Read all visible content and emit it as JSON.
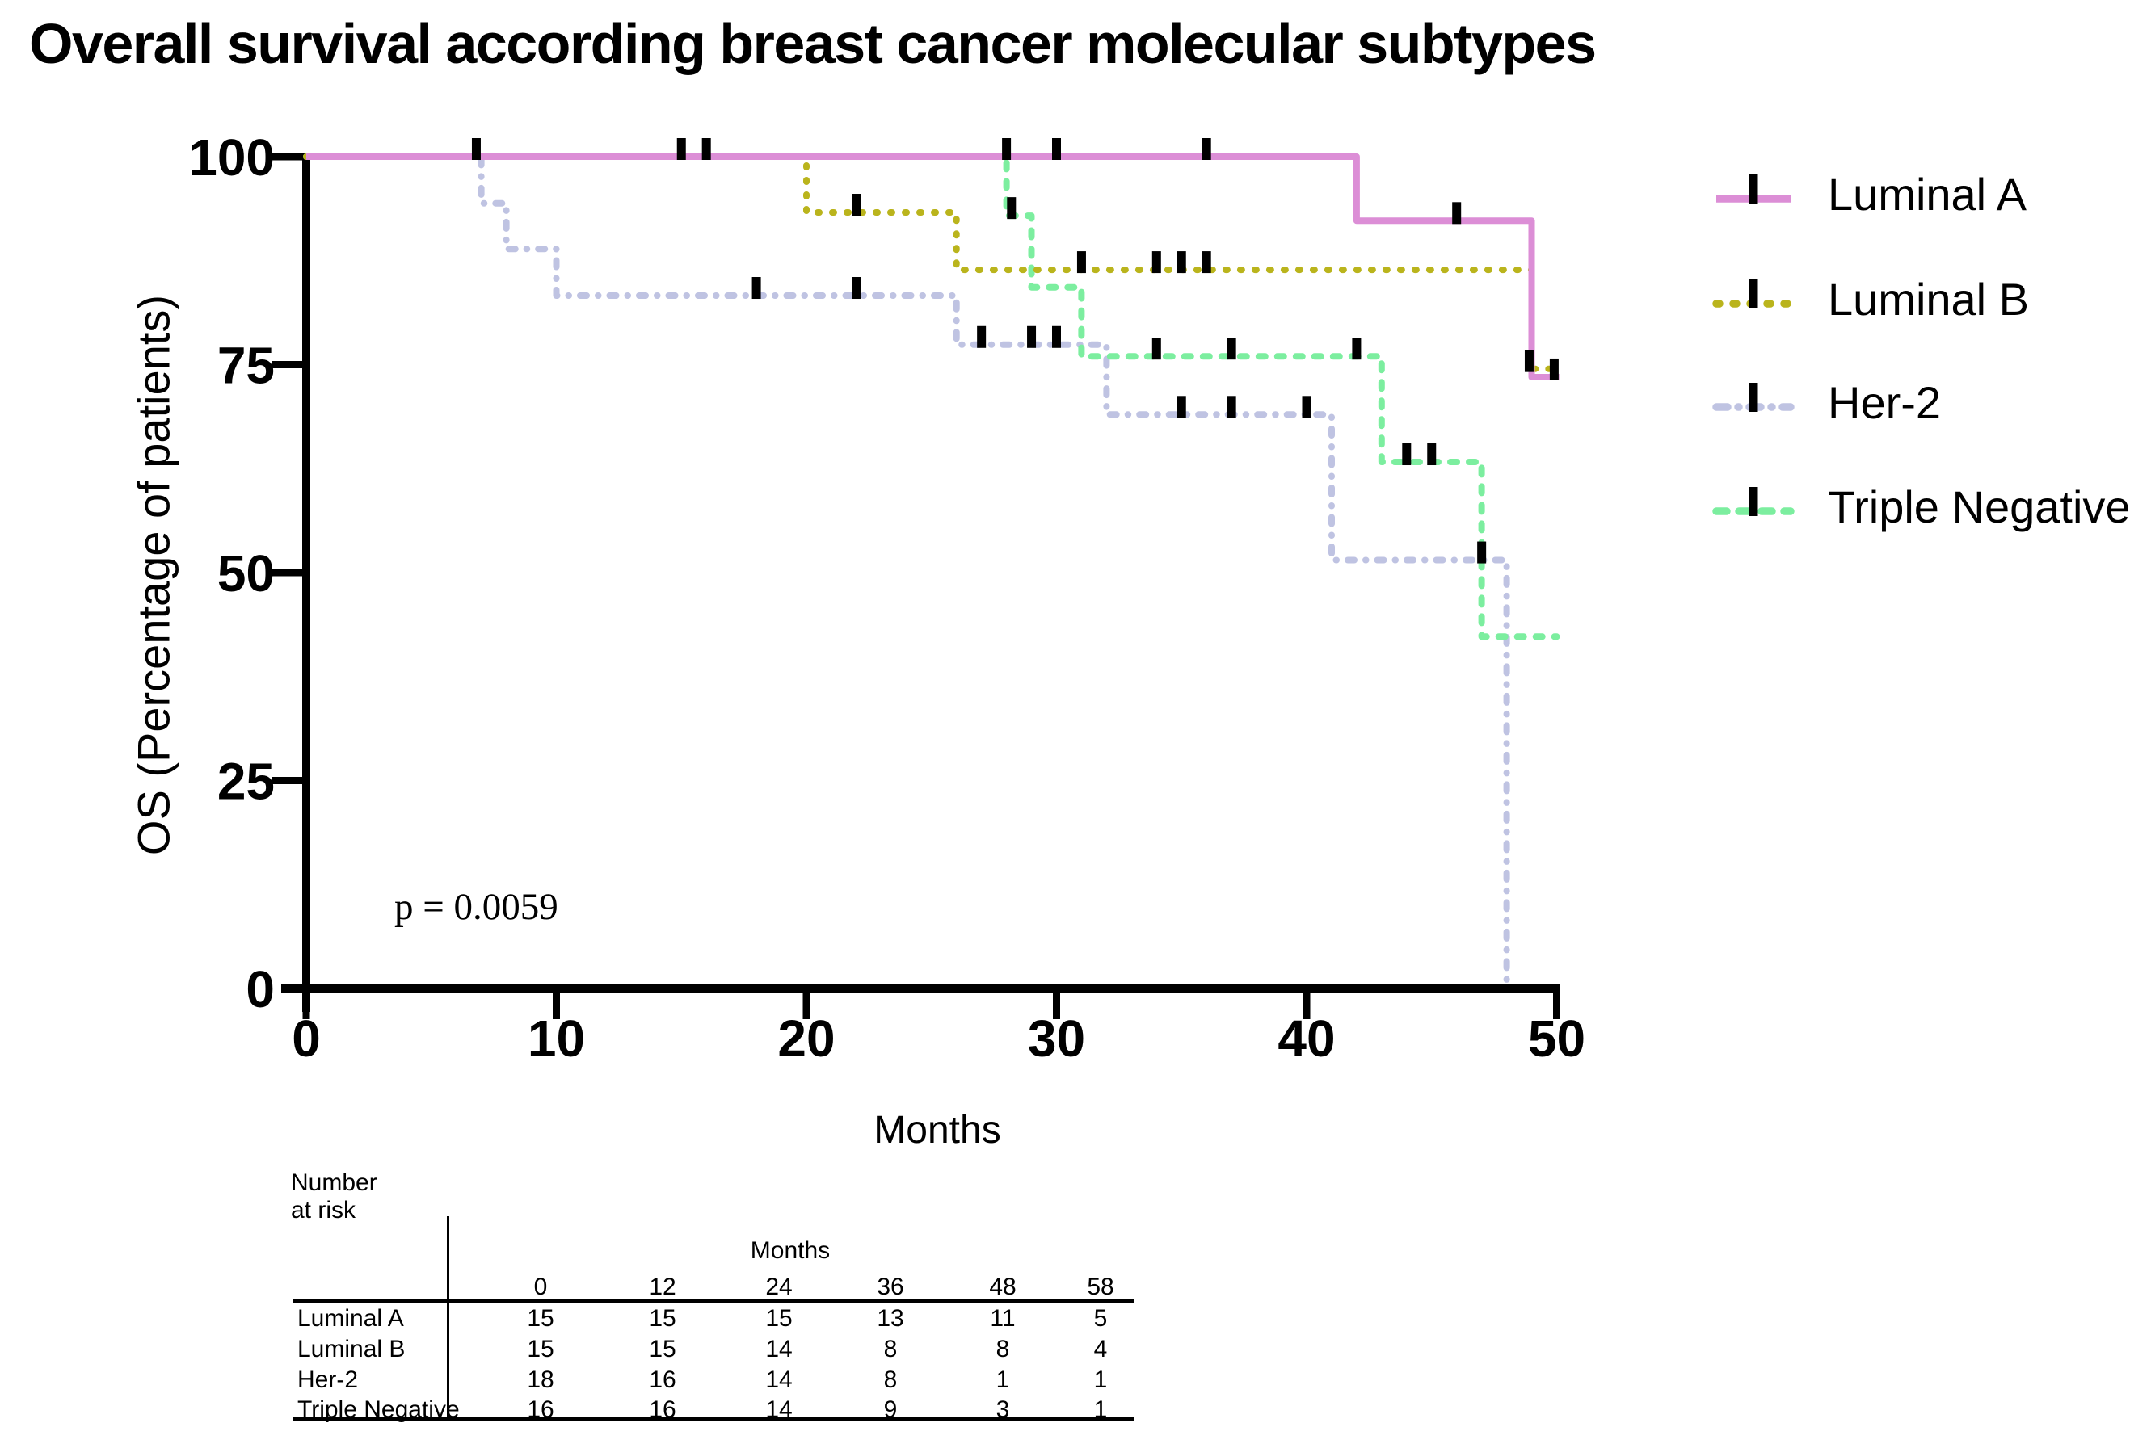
{
  "page": {
    "title": "Overall survival according breast cancer molecular subtypes"
  },
  "chart_data": {
    "type": "line",
    "subtype": "kaplan-meier-step",
    "title": "Overall survival according breast cancer molecular subtypes",
    "xlabel": "Months",
    "ylabel": "OS (Percentage of patients)",
    "annotation": "p = 0.0059",
    "xlim": [
      0,
      50
    ],
    "ylim": [
      0,
      100
    ],
    "xticks": [
      0,
      10,
      20,
      30,
      40,
      50
    ],
    "yticks": [
      100,
      75,
      50,
      25,
      0
    ],
    "grid": false,
    "legend_position": "right",
    "series": [
      {
        "name": "Her-2",
        "color": "#BFC3E2",
        "style": "dash-dot-dot",
        "steps": [
          [
            0,
            100
          ],
          [
            7,
            100
          ],
          [
            7,
            94.4
          ],
          [
            8,
            94.4
          ],
          [
            8,
            88.9
          ],
          [
            10,
            88.9
          ],
          [
            10,
            83.3
          ],
          [
            26,
            83.3
          ],
          [
            26,
            77.4
          ],
          [
            32,
            77.4
          ],
          [
            32,
            69
          ],
          [
            41,
            69
          ],
          [
            41,
            51.5
          ],
          [
            48,
            51.5
          ],
          [
            48,
            0
          ]
        ],
        "censors": [
          [
            6.8,
            100
          ],
          [
            18,
            83.3
          ],
          [
            22,
            83.3
          ],
          [
            27,
            77.4
          ],
          [
            29,
            77.4
          ],
          [
            30,
            77.4
          ],
          [
            35,
            69
          ],
          [
            37,
            69
          ],
          [
            40,
            69
          ],
          [
            47,
            51.5
          ]
        ]
      },
      {
        "name": "Triple Negative",
        "color": "#7CEE9F",
        "style": "dashed",
        "steps": [
          [
            0,
            100
          ],
          [
            28,
            100
          ],
          [
            28,
            92.9
          ],
          [
            29,
            92.9
          ],
          [
            29,
            84.3
          ],
          [
            31,
            84.3
          ],
          [
            31,
            76
          ],
          [
            43,
            76
          ],
          [
            43,
            63.3
          ],
          [
            47,
            63.3
          ],
          [
            47,
            42.3
          ],
          [
            50,
            42.3
          ]
        ],
        "censors": [
          [
            15,
            100
          ],
          [
            16,
            100
          ],
          [
            28.2,
            92.9
          ],
          [
            34,
            76
          ],
          [
            37,
            76
          ],
          [
            42,
            76
          ],
          [
            44,
            63.3
          ],
          [
            45,
            63.3
          ]
        ]
      },
      {
        "name": "Luminal B",
        "color": "#BAB41C",
        "style": "dotted",
        "steps": [
          [
            0,
            100
          ],
          [
            20,
            100
          ],
          [
            20,
            93.3
          ],
          [
            26,
            93.3
          ],
          [
            26,
            86.4
          ],
          [
            49,
            86.4
          ],
          [
            49,
            74.5
          ],
          [
            49.8,
            74.5
          ]
        ],
        "censors": [
          [
            22,
            93.3
          ],
          [
            31,
            86.4
          ],
          [
            34,
            86.4
          ],
          [
            35,
            86.4
          ],
          [
            36,
            86.4
          ],
          [
            48.9,
            74.5
          ]
        ]
      },
      {
        "name": "Luminal A",
        "color": "#DC8ED6",
        "style": "solid",
        "steps": [
          [
            0,
            100
          ],
          [
            42,
            100
          ],
          [
            42,
            92.3
          ],
          [
            49,
            92.3
          ],
          [
            49,
            73.5
          ],
          [
            50.1,
            73.5
          ]
        ],
        "censors": [
          [
            28,
            100
          ],
          [
            30,
            100
          ],
          [
            36,
            100
          ],
          [
            46,
            92.3
          ],
          [
            49.9,
            73.5
          ]
        ]
      }
    ],
    "legend_order": [
      "Luminal A",
      "Luminal B",
      "Her-2",
      "Triple Negative"
    ]
  },
  "risk_table": {
    "title": "Number at risk",
    "months_label": "Months",
    "columns": [
      "0",
      "12",
      "24",
      "36",
      "48",
      "58"
    ],
    "rows": [
      {
        "label": "Luminal A",
        "values": [
          "15",
          "15",
          "15",
          "13",
          "11",
          "5"
        ]
      },
      {
        "label": "Luminal B",
        "values": [
          "15",
          "15",
          "14",
          "8",
          "8",
          "4"
        ]
      },
      {
        "label": "Her-2",
        "values": [
          "18",
          "16",
          "14",
          "8",
          "1",
          "1"
        ]
      },
      {
        "label": "Triple Negative",
        "values": [
          "16",
          "16",
          "14",
          "9",
          "3",
          "1"
        ]
      }
    ]
  }
}
